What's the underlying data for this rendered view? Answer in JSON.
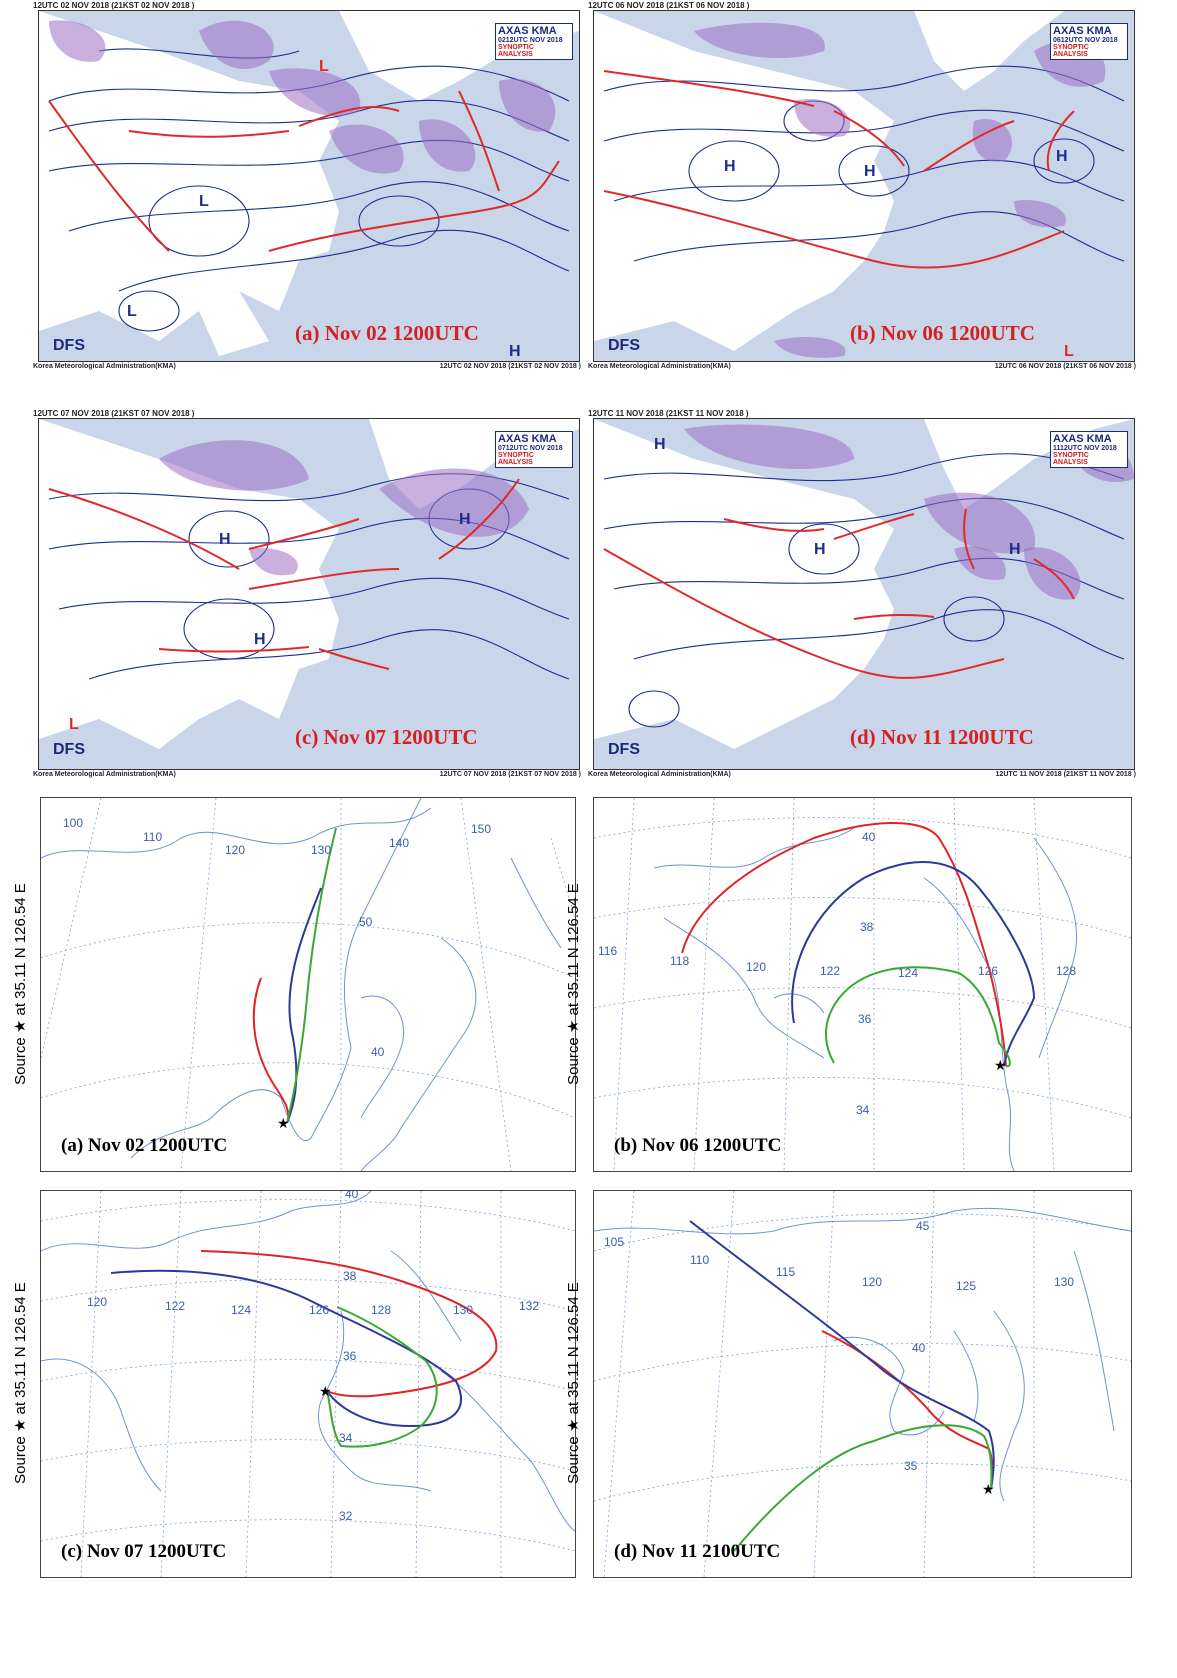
{
  "synoptic": [
    {
      "header": "12UTC 02 NOV 2018 (21KST 02 NOV 2018 )",
      "agency": "AXAS KMA",
      "issue": "0212UTC NOV 2018",
      "analysis": "SYNOPTIC ANALYSIS",
      "dfs": "DFS",
      "caption": "(a) Nov 02 1200UTC",
      "footer_left": "Korea Meteorological Administration(KMA)",
      "footer_right": "12UTC 02 NOV 2018 (21KST 02 NOV 2018 )"
    },
    {
      "header": "12UTC 06 NOV 2018 (21KST 06 NOV 2018 )",
      "agency": "AXAS KMA",
      "issue": "0612UTC NOV 2018",
      "analysis": "SYNOPTIC ANALYSIS",
      "dfs": "DFS",
      "caption": "(b) Nov 06 1200UTC",
      "footer_left": "Korea Meteorological Administration(KMA)",
      "footer_right": "12UTC 06 NOV 2018 (21KST 06 NOV 2018 )"
    },
    {
      "header": "12UTC 07 NOV 2018 (21KST 07 NOV 2018 )",
      "agency": "AXAS KMA",
      "issue": "0712UTC NOV 2018",
      "analysis": "SYNOPTIC ANALYSIS",
      "dfs": "DFS",
      "caption": "(c) Nov 07 1200UTC",
      "footer_left": "Korea Meteorological Administration(KMA)",
      "footer_right": "12UTC 07 NOV 2018 (21KST 07 NOV 2018 )"
    },
    {
      "header": "12UTC 11 NOV 2018 (21KST 11 NOV 2018 )",
      "agency": "AXAS KMA",
      "issue": "1112UTC NOV 2018",
      "analysis": "SYNOPTIC ANALYSIS",
      "dfs": "DFS",
      "caption": "(d) Nov 11 1200UTC",
      "footer_left": "Korea Meteorological Administration(KMA)",
      "footer_right": "12UTC 11 NOV 2018 (21KST 11 NOV 2018 )"
    }
  ],
  "trajectory": {
    "source_label": "Source ★ at 35.11 N 126.54 E",
    "panels": [
      {
        "caption": "(a) Nov 02 1200UTC",
        "lon_labels": [
          "100",
          "110",
          "120",
          "130",
          "140",
          "150"
        ],
        "lat_labels": [
          "50",
          "40"
        ]
      },
      {
        "caption": "(b) Nov 06 1200UTC",
        "lon_labels": [
          "116",
          "118",
          "120",
          "122",
          "124",
          "126",
          "128"
        ],
        "lat_labels": [
          "40",
          "38",
          "36",
          "34"
        ]
      },
      {
        "caption": "(c) Nov 07 1200UTC",
        "lon_labels": [
          "120",
          "122",
          "124",
          "126",
          "128",
          "130",
          "132"
        ],
        "lat_labels": [
          "40",
          "38",
          "36",
          "34",
          "32"
        ]
      },
      {
        "caption": "(d) Nov 11 2100UTC",
        "lon_labels": [
          "105",
          "110",
          "115",
          "120",
          "125",
          "130"
        ],
        "lat_labels": [
          "45",
          "40",
          "35"
        ]
      }
    ],
    "line_colors": {
      "red": "#e02424",
      "blue": "#2b3a9a",
      "green": "#3aa832"
    }
  },
  "colors": {
    "front_red": "#e02a2a",
    "isobar": "#1c2d8c",
    "jet_purple": "#9c6fc2",
    "sea": "#c9d6ea",
    "land": "#ffffff",
    "coast": "#6f93cf"
  }
}
